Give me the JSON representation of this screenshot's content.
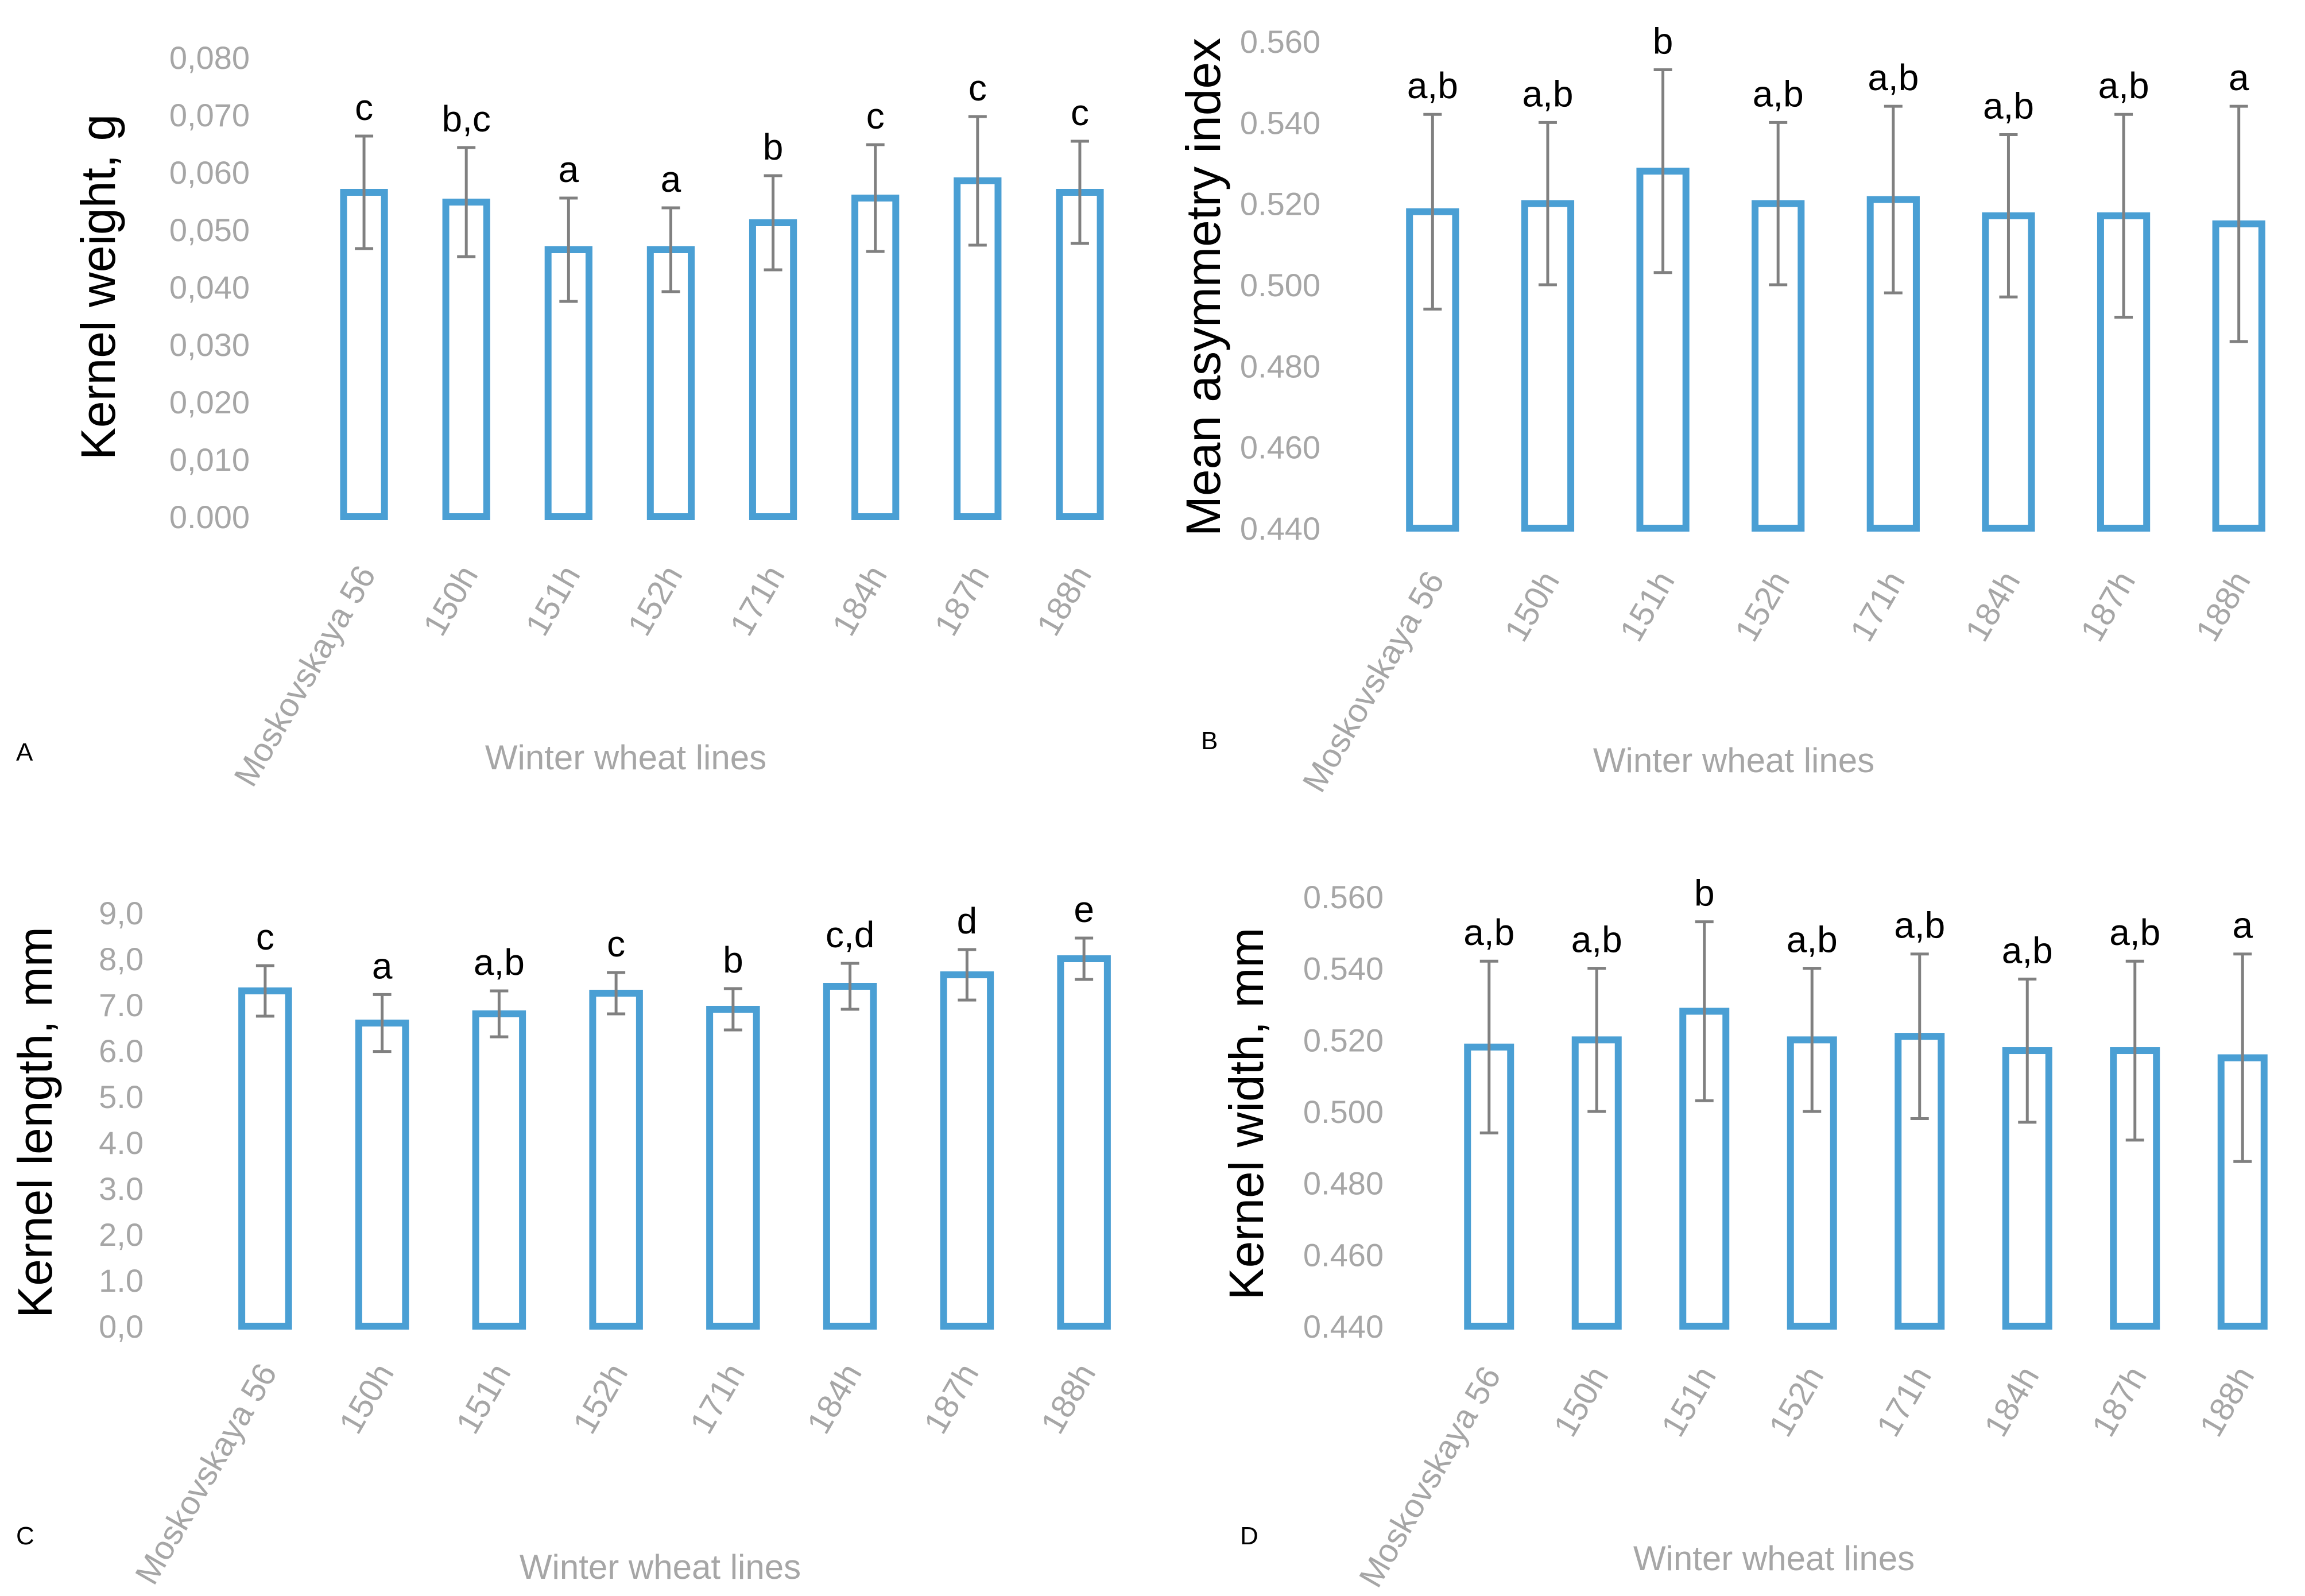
{
  "colors": {
    "bar": "#4a9fd4",
    "error": "#808080",
    "tick": "#a6a6a6"
  },
  "chart_data": [
    {
      "type": "bar",
      "panel": "A",
      "ylabel": "Kernel weight, g",
      "xlabel": "Winter wheat lines",
      "ylim": [
        0,
        0.08
      ],
      "yticks": [
        "0.000",
        "0,010",
        "0,020",
        "0,030",
        "0,040",
        "0,050",
        "0,060",
        "0,070",
        "0,080"
      ],
      "categories": [
        "Moskovskaya 56",
        "150h",
        "151h",
        "152h",
        "171h",
        "184h",
        "187h",
        "188h"
      ],
      "values": [
        0.0565,
        0.0548,
        0.0465,
        0.0465,
        0.0512,
        0.0555,
        0.0585,
        0.0565
      ],
      "errors": [
        0.0098,
        0.0095,
        0.009,
        0.0073,
        0.0082,
        0.0093,
        0.0112,
        0.0089
      ],
      "labels": [
        "c",
        "b,c",
        "a",
        "a",
        "b",
        "c",
        "c",
        "c"
      ]
    },
    {
      "type": "bar",
      "panel": "B",
      "ylabel": "Mean asymmetry index",
      "xlabel": "Winter wheat lines",
      "ylim": [
        0.44,
        0.56
      ],
      "yticks": [
        "0.440",
        "0.460",
        "0.480",
        "0.500",
        "0.520",
        "0.540",
        "0.560"
      ],
      "categories": [
        "Moskovskaya 56",
        "150h",
        "151h",
        "152h",
        "171h",
        "184h",
        "187h",
        "188h"
      ],
      "values": [
        0.518,
        0.52,
        0.528,
        0.52,
        0.521,
        0.517,
        0.517,
        0.515
      ],
      "errors": [
        0.024,
        0.02,
        0.025,
        0.02,
        0.023,
        0.02,
        0.025,
        0.029
      ],
      "labels": [
        "a,b",
        "a,b",
        "b",
        "a,b",
        "a,b",
        "a,b",
        "a,b",
        "a"
      ]
    },
    {
      "type": "bar",
      "panel": "C",
      "ylabel": "Kernel length, mm",
      "xlabel": "Winter wheat lines",
      "ylim": [
        0,
        9
      ],
      "yticks": [
        "0,0",
        "1.0",
        "2,0",
        "3.0",
        "4.0",
        "5.0",
        "6.0",
        "7.0",
        "8,0",
        "9,0"
      ],
      "categories": [
        "Moskovskaya 56",
        "150h",
        "151h",
        "152h",
        "171h",
        "184h",
        "187h",
        "188h"
      ],
      "values": [
        7.3,
        6.6,
        6.8,
        7.25,
        6.9,
        7.4,
        7.65,
        8.0
      ],
      "errors": [
        0.55,
        0.62,
        0.5,
        0.45,
        0.45,
        0.5,
        0.55,
        0.45
      ],
      "labels": [
        "c",
        "a",
        "a,b",
        "c",
        "b",
        "c,d",
        "d",
        "e"
      ]
    },
    {
      "type": "bar",
      "panel": "D",
      "ylabel": "Kernel width, mm",
      "xlabel": "Winter wheat lines",
      "ylim": [
        0.44,
        0.56
      ],
      "yticks": [
        "0.440",
        "0.460",
        "0.480",
        "0.500",
        "0.520",
        "0.540",
        "0.560"
      ],
      "categories": [
        "Moskovskaya 56",
        "150h",
        "151h",
        "152h",
        "171h",
        "184h",
        "187h",
        "188h"
      ],
      "values": [
        0.518,
        0.52,
        0.528,
        0.52,
        0.521,
        0.517,
        0.517,
        0.515
      ],
      "errors": [
        0.024,
        0.02,
        0.025,
        0.02,
        0.023,
        0.02,
        0.025,
        0.029
      ],
      "labels": [
        "a,b",
        "a,b",
        "b",
        "a,b",
        "a,b",
        "a,b",
        "a,b",
        "a"
      ]
    }
  ]
}
